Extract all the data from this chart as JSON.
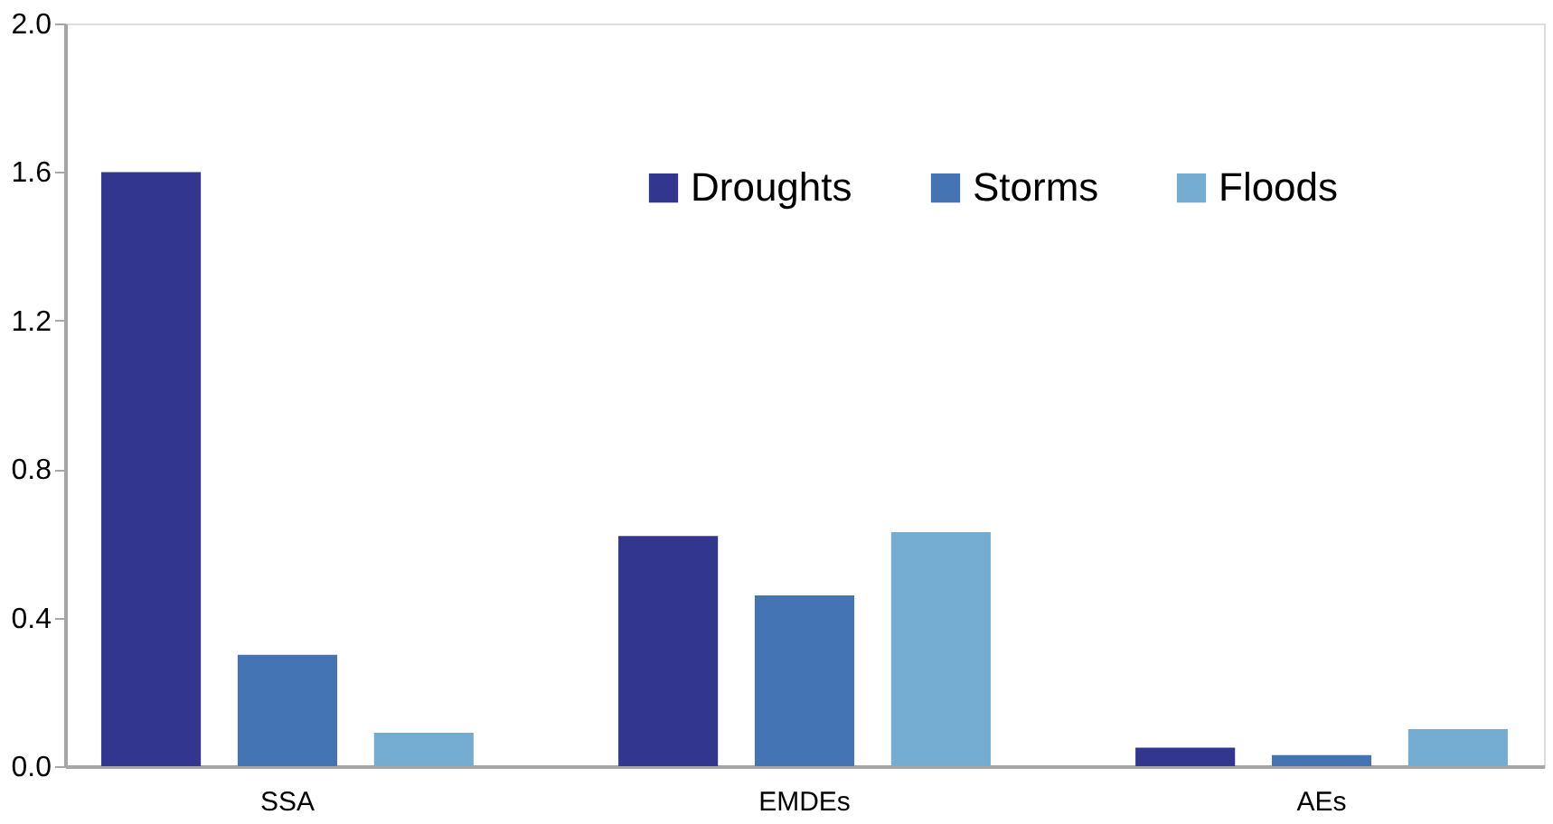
{
  "chart_data": {
    "type": "bar",
    "categories": [
      "SSA",
      "EMDEs",
      "AEs"
    ],
    "series": [
      {
        "name": "Droughts",
        "color": "#32368f",
        "values": [
          1.6,
          0.62,
          0.05
        ]
      },
      {
        "name": "Storms",
        "color": "#4474b4",
        "values": [
          0.3,
          0.46,
          0.03
        ]
      },
      {
        "name": "Floods",
        "color": "#75add2",
        "values": [
          0.09,
          0.63,
          0.1
        ]
      }
    ],
    "ylim": [
      0,
      2.0
    ],
    "yticks": [
      {
        "value": 0,
        "label": "0.0"
      },
      {
        "value": 0.4,
        "label": "0.4"
      },
      {
        "value": 0.8,
        "label": "0.8"
      },
      {
        "value": 1.2,
        "label": "1.2"
      },
      {
        "value": 1.6,
        "label": "1.6"
      },
      {
        "value": 2.0,
        "label": "2.0"
      }
    ],
    "grid": false,
    "legend": "top right"
  }
}
